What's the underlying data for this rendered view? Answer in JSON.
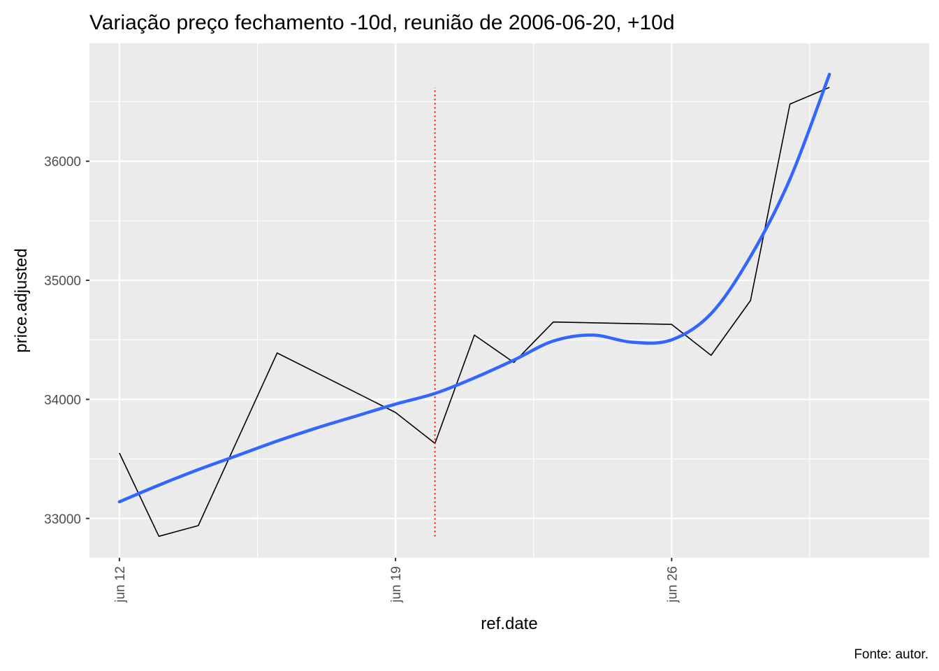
{
  "chart_data": {
    "type": "line",
    "title": "Variação preço fechamento -10d, reunião de 2006-06-20, +10d",
    "xlabel": "ref.date",
    "ylabel": "price.adjusted",
    "caption": "Fonte: autor.",
    "x_ticks": [
      {
        "date": "2006-06-12",
        "label": "jun 12"
      },
      {
        "date": "2006-06-19",
        "label": "jun 19"
      },
      {
        "date": "2006-06-26",
        "label": "jun 26"
      }
    ],
    "y_ticks": [
      33000,
      34000,
      35000,
      36000
    ],
    "xlim": [
      "2006-06-11.24",
      "2006-07-02.53"
    ],
    "ylim": [
      32670,
      36990
    ],
    "grid": true,
    "panel_background": "#ebebeb",
    "grid_color": "#ffffff",
    "series": [
      {
        "color": "#000000",
        "points": [
          {
            "x": "2006-06-12",
            "y": 33550
          },
          {
            "x": "2006-06-13",
            "y": 32850
          },
          {
            "x": "2006-06-14",
            "y": 32940
          },
          {
            "x": "2006-06-16",
            "y": 34390
          },
          {
            "x": "2006-06-19",
            "y": 33890
          },
          {
            "x": "2006-06-20",
            "y": 33630
          },
          {
            "x": "2006-06-21",
            "y": 34540
          },
          {
            "x": "2006-06-22",
            "y": 34310
          },
          {
            "x": "2006-06-23",
            "y": 34650
          },
          {
            "x": "2006-06-26",
            "y": 34630
          },
          {
            "x": "2006-06-27",
            "y": 34370
          },
          {
            "x": "2006-06-28",
            "y": 34830
          },
          {
            "x": "2006-06-29",
            "y": 36480
          },
          {
            "x": "2006-06-30",
            "y": 36620
          }
        ]
      }
    ],
    "smooth": {
      "color": "#3366ff",
      "points": [
        {
          "x": "2006-06-12",
          "y": 33140
        },
        {
          "x": "2006-06-13",
          "y": 33280
        },
        {
          "x": "2006-06-14",
          "y": 33410
        },
        {
          "x": "2006-06-15",
          "y": 33530
        },
        {
          "x": "2006-06-16",
          "y": 33650
        },
        {
          "x": "2006-06-17",
          "y": 33760
        },
        {
          "x": "2006-06-18",
          "y": 33860
        },
        {
          "x": "2006-06-19",
          "y": 33960
        },
        {
          "x": "2006-06-20",
          "y": 34050
        },
        {
          "x": "2006-06-21",
          "y": 34180
        },
        {
          "x": "2006-06-22",
          "y": 34330
        },
        {
          "x": "2006-06-23",
          "y": 34490
        },
        {
          "x": "2006-06-24",
          "y": 34540
        },
        {
          "x": "2006-06-25",
          "y": 34480
        },
        {
          "x": "2006-06-26",
          "y": 34500
        },
        {
          "x": "2006-06-27",
          "y": 34720
        },
        {
          "x": "2006-06-28",
          "y": 35200
        },
        {
          "x": "2006-06-29",
          "y": 35850
        },
        {
          "x": "2006-06-30",
          "y": 36730
        }
      ]
    },
    "event_line": {
      "date": "2006-06-20",
      "color": "#ff0000",
      "y_range": [
        32850,
        36620
      ]
    }
  }
}
